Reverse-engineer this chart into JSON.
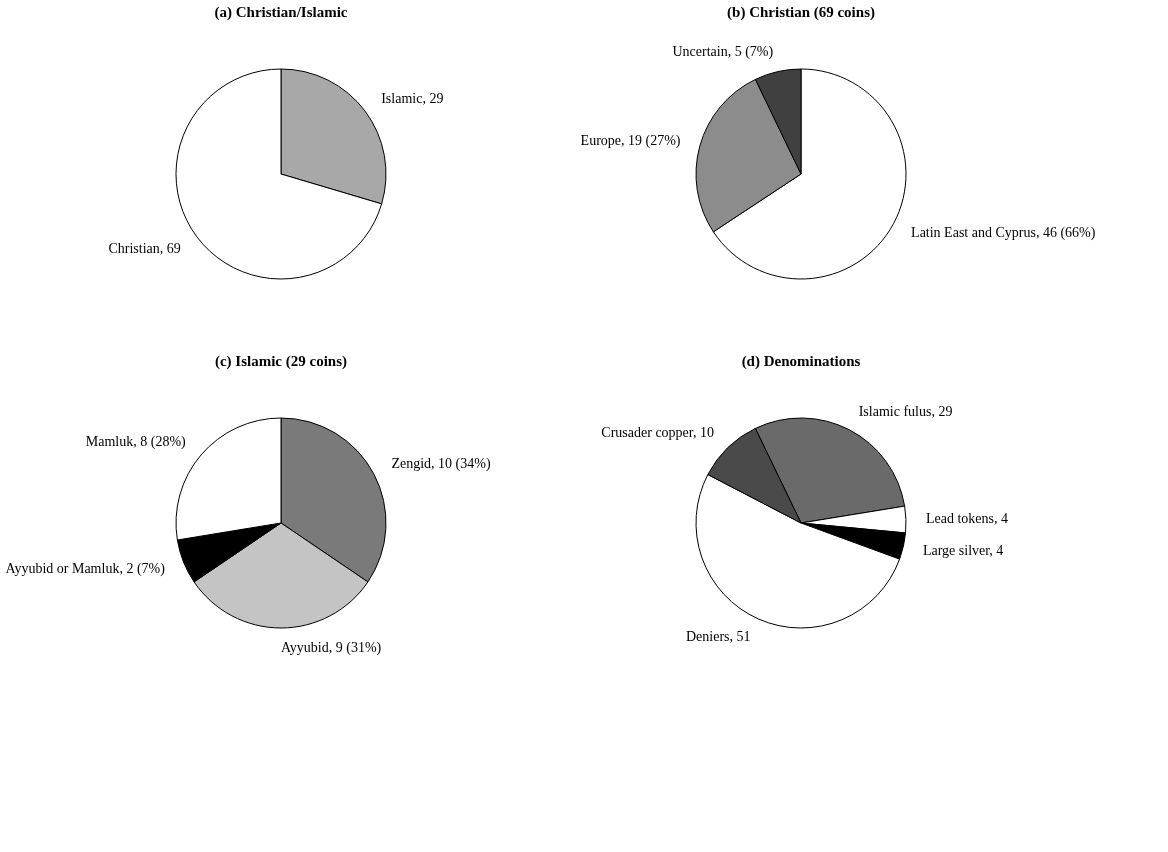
{
  "chart_data": [
    {
      "type": "pie",
      "title": "(a) Christian/Islamic",
      "categories": [
        "Islamic",
        "Christian"
      ],
      "values": [
        29,
        69
      ],
      "colors": [
        "#a8a8a8",
        "#ffffff"
      ],
      "value_labels": [
        "29",
        "69"
      ]
    },
    {
      "type": "pie",
      "title": "(b) Christian (69 coins)",
      "categories": [
        "Latin East and Cyprus",
        "Europe",
        "Uncertain"
      ],
      "values": [
        46,
        19,
        5
      ],
      "colors": [
        "#ffffff",
        "#8c8c8c",
        "#404040"
      ],
      "value_labels": [
        "46 (66%)",
        "19 (27%)",
        "5 (7%)"
      ]
    },
    {
      "type": "pie",
      "title": "(c) Islamic (29 coins)",
      "categories": [
        "Zengid",
        "Ayyubid",
        "Ayyubid or Mamluk",
        "Mamluk"
      ],
      "values": [
        10,
        9,
        2,
        8
      ],
      "colors": [
        "#7a7a7a",
        "#c4c4c4",
        "#000000",
        "#ffffff"
      ],
      "value_labels": [
        "10 (34%)",
        "9 (31%)",
        "2 (7%)",
        "8 (28%)"
      ]
    },
    {
      "type": "pie",
      "title": "(d) Denominations",
      "categories": [
        "Islamic fulus",
        "Lead tokens",
        "Large silver",
        "Deniers",
        "Crusader copper"
      ],
      "values": [
        29,
        4,
        4,
        51,
        10
      ],
      "colors": [
        "#6a6a6a",
        "#ffffff",
        "#000000",
        "#ffffff",
        "#4a4a4a"
      ],
      "value_labels": [
        "29",
        "4",
        "4",
        "51",
        "10"
      ]
    }
  ]
}
